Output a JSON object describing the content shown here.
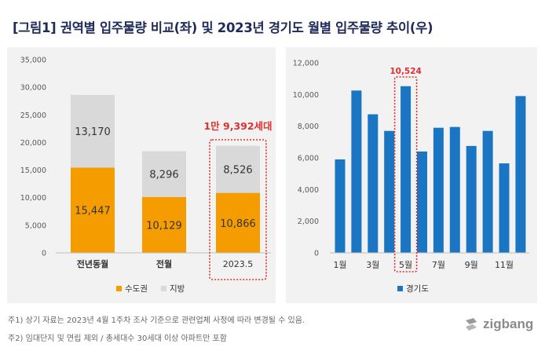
{
  "title": "[그림1] 권역별 입주물량 비교(좌) 및 2023년 경기도 월별 입주물량 추이(우)",
  "notes": {
    "note1": "주1) 상기 자료는 2023년 4월 1주차 조사 기준으로 관련업체 사정에 따라 변경될 수 있음.",
    "note2": "주2) 임대단지 및 연립 제외 / 총세대수 30세대 이상 아파트만 포함"
  },
  "logo": {
    "text": "zigbang",
    "icon": "zigbang-logo-icon"
  },
  "colors": {
    "metro": "#f59c00",
    "local": "#d9d9d9",
    "gyeonggi": "#1a75c2",
    "highlight": "#e03030",
    "panel_bg": "#f2f2f2"
  },
  "chart_data": [
    {
      "type": "bar",
      "stacked": true,
      "categories": [
        "전년동월",
        "전월",
        "2023.5"
      ],
      "series": [
        {
          "name": "수도권",
          "values": [
            15447,
            10129,
            10866
          ],
          "labels": [
            "15,447",
            "10,129",
            "10,866"
          ]
        },
        {
          "name": "지방",
          "values": [
            13170,
            8296,
            8526
          ],
          "labels": [
            "13,170",
            "8,296",
            "8,526"
          ]
        }
      ],
      "ylim": [
        0,
        35000
      ],
      "yticks": [
        "0",
        "5,000",
        "10,000",
        "15,000",
        "20,000",
        "25,000",
        "30,000",
        "35,000"
      ],
      "grid": false,
      "legend": "bottom",
      "highlight": {
        "category": "2023.5",
        "label": "1만 9,392세대"
      }
    },
    {
      "type": "bar",
      "categories": [
        "1월",
        "2월",
        "3월",
        "4월",
        "5월",
        "6월",
        "7월",
        "8월",
        "9월",
        "10월",
        "11월",
        "12월"
      ],
      "tick_labels": [
        "1월",
        "",
        "3월",
        "",
        "5월",
        "",
        "7월",
        "",
        "9월",
        "",
        "11월",
        ""
      ],
      "series": [
        {
          "name": "경기도",
          "values": [
            5900,
            10250,
            8750,
            7700,
            10524,
            6400,
            7900,
            7950,
            6750,
            7700,
            5650,
            9900
          ]
        }
      ],
      "ylim": [
        0,
        12000
      ],
      "yticks": [
        "0",
        "2,000",
        "4,000",
        "6,000",
        "8,000",
        "10,000",
        "12,000"
      ],
      "grid": false,
      "legend": "bottom",
      "highlight": {
        "category": "5월",
        "label": "10,524"
      }
    }
  ]
}
